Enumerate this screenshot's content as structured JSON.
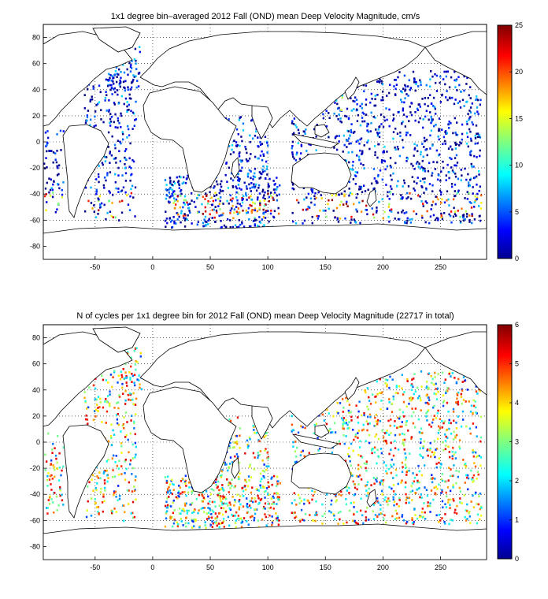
{
  "chart_data": [
    {
      "type": "heatmap",
      "title": "1x1 degree bin–averaged 2012 Fall (OND) mean Deep Velocity Magnitude, cm/s",
      "xlabel": "",
      "ylabel": "",
      "xlim": [
        -95,
        290
      ],
      "ylim": [
        -90,
        90
      ],
      "x_ticks": [
        "-50",
        "0",
        "50",
        "100",
        "150",
        "200",
        "250"
      ],
      "x_tick_values": [
        -50,
        0,
        50,
        100,
        150,
        200,
        250
      ],
      "y_ticks": [
        "80",
        "60",
        "40",
        "20",
        "0",
        "-20",
        "-40",
        "-60",
        "-80"
      ],
      "y_tick_values": [
        80,
        60,
        40,
        20,
        0,
        -20,
        -40,
        -60,
        -80
      ],
      "grid": true,
      "grid_style": "dotted",
      "colormap": "jet",
      "colorbar": {
        "min": 0,
        "max": 25,
        "ticks": [
          "0",
          "5",
          "10",
          "15",
          "20",
          "25"
        ],
        "tick_values": [
          0,
          5,
          10,
          15,
          20,
          25
        ]
      },
      "description_of_pattern": "bins mostly 0-6 cm/s; high values (15-25) along Southern Ocean -40 to -55 latitude and Kuroshio / Gulf Stream regions"
    },
    {
      "type": "heatmap",
      "title": "N of cycles per 1x1 degree bin for 2012 Fall (OND) mean Deep Velocity Magnitude (22717 in total)",
      "xlabel": "",
      "ylabel": "",
      "xlim": [
        -95,
        290
      ],
      "ylim": [
        -90,
        90
      ],
      "x_ticks": [
        "-50",
        "0",
        "50",
        "100",
        "150",
        "200",
        "250"
      ],
      "x_tick_values": [
        -50,
        0,
        50,
        100,
        150,
        200,
        250
      ],
      "y_ticks": [
        "80",
        "60",
        "40",
        "20",
        "0",
        "-20",
        "-40",
        "-60",
        "-80"
      ],
      "y_tick_values": [
        80,
        60,
        40,
        20,
        0,
        -20,
        -40,
        -60,
        -80
      ],
      "grid": true,
      "grid_style": "dotted",
      "colormap": "jet",
      "colorbar": {
        "min": 0,
        "max": 6,
        "ticks": [
          "0",
          "1",
          "2",
          "3",
          "4",
          "5",
          "6"
        ],
        "tick_values": [
          0,
          1,
          2,
          3,
          4,
          5,
          6
        ]
      },
      "total_cycles": 22717
    }
  ]
}
